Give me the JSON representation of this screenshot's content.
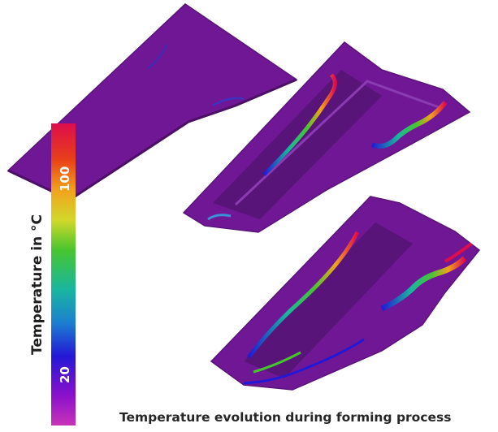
{
  "colorbar": {
    "title": "Temperature in °C",
    "tick_max": "100",
    "tick_min": "20",
    "gradient_colors": [
      "#dd0d4c",
      "#e84018",
      "#f2a21d",
      "#d2d82a",
      "#47c52f",
      "#19b6a0",
      "#1c7fd0",
      "#2318d6",
      "#8b10cc",
      "#c734b8"
    ]
  },
  "caption": "Temperature evolution during forming process",
  "colors": {
    "part_base": "#6f1794",
    "part_dark": "#591479",
    "part_light": "#8a3bb2"
  }
}
